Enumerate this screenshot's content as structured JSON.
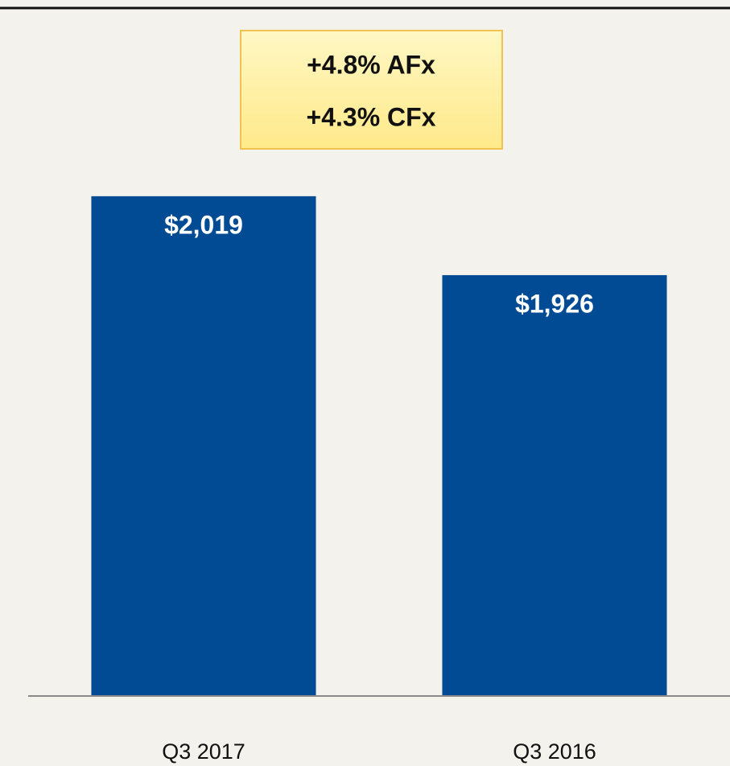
{
  "chart_data": {
    "type": "bar",
    "annotations": [
      "+4.8% AFx",
      "+4.3% CFx"
    ],
    "categories": [
      "Q3 2017",
      "Q3 2016"
    ],
    "values": [
      2019,
      1926
    ],
    "value_labels": [
      "$2,019",
      "$1,926"
    ],
    "color": "#004b93",
    "ylim": [
      1430,
      2200
    ]
  }
}
